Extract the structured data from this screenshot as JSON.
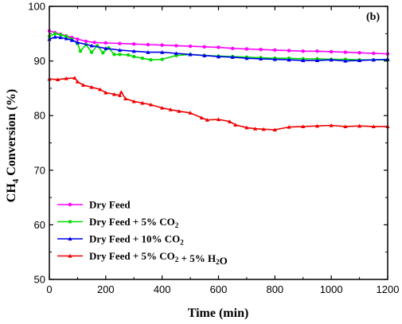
{
  "chart_data": {
    "type": "line",
    "panel_label": "(b)",
    "xlabel": "Time (min)",
    "ylabel_main": "CH",
    "ylabel_sub": "4",
    "ylabel_rest": " Conversion (%)",
    "xlim": [
      0,
      1200
    ],
    "ylim": [
      50,
      100
    ],
    "x_ticks": [
      0,
      200,
      400,
      600,
      800,
      1000,
      1200
    ],
    "y_ticks": [
      50,
      60,
      70,
      80,
      90,
      100
    ],
    "legend_position": "lower-left",
    "series": [
      {
        "name": "Dry Feed",
        "legend_parts": [
          [
            "Dry Feed",
            ""
          ]
        ],
        "color": "#ff00ff",
        "marker": "circle",
        "x": [
          0,
          20,
          40,
          60,
          80,
          100,
          130,
          160,
          200,
          250,
          300,
          350,
          400,
          450,
          500,
          550,
          600,
          650,
          700,
          750,
          800,
          850,
          900,
          950,
          1000,
          1050,
          1100,
          1150,
          1200
        ],
        "y": [
          95.5,
          95.2,
          94.9,
          94.6,
          94.3,
          94.0,
          93.6,
          93.4,
          93.3,
          93.2,
          93.1,
          93.0,
          92.9,
          92.8,
          92.7,
          92.6,
          92.5,
          92.3,
          92.2,
          92.1,
          92.0,
          91.9,
          91.8,
          91.8,
          91.7,
          91.6,
          91.5,
          91.4,
          91.3
        ]
      },
      {
        "name": "Dry Feed + 5% CO2",
        "legend_parts": [
          [
            "Dry Feed + 5% CO",
            ""
          ],
          [
            "2",
            "sub"
          ]
        ],
        "color": "#00dd00",
        "marker": "circle",
        "x": [
          0,
          20,
          40,
          60,
          80,
          100,
          110,
          130,
          150,
          170,
          190,
          210,
          230,
          250,
          280,
          300,
          330,
          360,
          400,
          450,
          500,
          550,
          600,
          650,
          700,
          750,
          800,
          850,
          900,
          950,
          1000,
          1050,
          1100,
          1150,
          1200
        ],
        "y": [
          94.5,
          95.0,
          94.8,
          94.5,
          94.0,
          93.2,
          91.8,
          93.0,
          91.6,
          92.8,
          91.5,
          92.4,
          91.2,
          91.2,
          91.1,
          90.8,
          90.5,
          90.2,
          90.3,
          91.0,
          91.2,
          91.0,
          90.9,
          90.8,
          90.7,
          90.6,
          90.5,
          90.5,
          90.4,
          90.4,
          90.3,
          90.3,
          90.2,
          90.2,
          90.2
        ]
      },
      {
        "name": "Dry Feed + 10% CO2",
        "legend_parts": [
          [
            "Dry Feed + 10% CO",
            ""
          ],
          [
            "2",
            "sub"
          ]
        ],
        "color": "#0000ee",
        "marker": "triangle",
        "x": [
          0,
          20,
          40,
          60,
          80,
          100,
          150,
          200,
          250,
          300,
          350,
          400,
          450,
          500,
          550,
          600,
          650,
          700,
          750,
          800,
          850,
          900,
          950,
          1000,
          1050,
          1100,
          1150,
          1200
        ],
        "y": [
          94.0,
          94.4,
          94.3,
          94.1,
          93.8,
          93.4,
          92.8,
          92.3,
          92.0,
          91.8,
          91.6,
          91.6,
          91.4,
          91.2,
          91.0,
          90.8,
          90.7,
          90.5,
          90.4,
          90.3,
          90.2,
          90.1,
          90.1,
          90.2,
          90.0,
          90.1,
          90.2,
          90.3
        ]
      },
      {
        "name": "Dry Feed + 5% CO2 + 5% H2O",
        "legend_parts": [
          [
            "Dry Feed + 5% CO",
            ""
          ],
          [
            "2",
            "sub"
          ],
          [
            " + 5% H",
            ""
          ],
          [
            "2",
            "sub"
          ],
          [
            "O",
            ""
          ]
        ],
        "color": "#ee0000",
        "marker": "triangle",
        "x": [
          0,
          30,
          60,
          90,
          100,
          120,
          150,
          180,
          200,
          230,
          250,
          255,
          270,
          300,
          330,
          360,
          400,
          430,
          460,
          500,
          540,
          560,
          600,
          640,
          660,
          700,
          730,
          760,
          800,
          850,
          900,
          950,
          1000,
          1050,
          1100,
          1150,
          1200
        ],
        "y": [
          86.7,
          86.6,
          86.8,
          86.9,
          86.2,
          85.6,
          85.2,
          84.8,
          84.2,
          83.9,
          83.7,
          84.3,
          83.1,
          82.6,
          82.3,
          82.0,
          81.4,
          81.1,
          80.8,
          80.5,
          79.6,
          79.2,
          79.3,
          78.9,
          78.3,
          77.8,
          77.6,
          77.5,
          77.4,
          77.9,
          78.0,
          78.1,
          78.2,
          78.0,
          78.1,
          78.0,
          78.0
        ]
      }
    ]
  }
}
